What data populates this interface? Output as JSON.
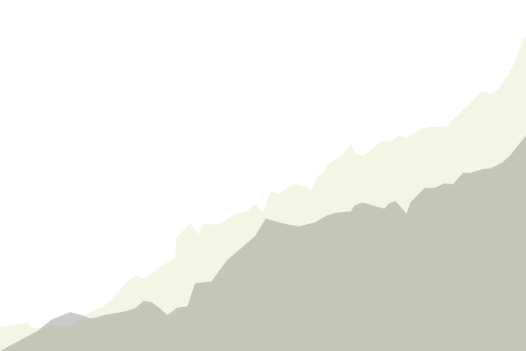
{
  "chart_data": {
    "type": "area",
    "title": "",
    "xlabel": "",
    "ylabel": "",
    "grid": false,
    "legend": "none",
    "axes_visible": false,
    "x_range": [
      0,
      100
    ],
    "y_range": [
      0,
      100
    ],
    "series": [
      {
        "color": "#f3f6e5",
        "points": [
          [
            0,
            6.8
          ],
          [
            5.3,
            8.0
          ],
          [
            6.1,
            6.6
          ],
          [
            9.1,
            6.6
          ],
          [
            12.1,
            6.6
          ],
          [
            15.2,
            9.3
          ],
          [
            18.2,
            12.0
          ],
          [
            19.7,
            12.7
          ],
          [
            21.2,
            14.8
          ],
          [
            24.2,
            19.8
          ],
          [
            25.8,
            21.6
          ],
          [
            27.3,
            20.7
          ],
          [
            28.8,
            22.0
          ],
          [
            30.3,
            23.9
          ],
          [
            33.3,
            26.4
          ],
          [
            33.6,
            32.5
          ],
          [
            36.2,
            36.4
          ],
          [
            37.7,
            33.2
          ],
          [
            38.6,
            36.1
          ],
          [
            41.7,
            36.1
          ],
          [
            43.2,
            37.5
          ],
          [
            44.7,
            39.1
          ],
          [
            47.0,
            39.8
          ],
          [
            48.5,
            42.0
          ],
          [
            50.0,
            39.5
          ],
          [
            51.5,
            45.5
          ],
          [
            53.0,
            44.8
          ],
          [
            54.5,
            46.4
          ],
          [
            56.1,
            47.7
          ],
          [
            57.6,
            46.8
          ],
          [
            58.3,
            47.3
          ],
          [
            59.1,
            45.5
          ],
          [
            60.6,
            50.2
          ],
          [
            61.4,
            50.5
          ],
          [
            62.1,
            52.7
          ],
          [
            63.6,
            54.5
          ],
          [
            65.2,
            55.9
          ],
          [
            66.7,
            58.9
          ],
          [
            67.4,
            56.6
          ],
          [
            69.0,
            55.5
          ],
          [
            72.7,
            60.0
          ],
          [
            74.2,
            59.5
          ],
          [
            75.8,
            61.4
          ],
          [
            77.3,
            60.7
          ],
          [
            80.3,
            63.4
          ],
          [
            81.8,
            63.9
          ],
          [
            84.8,
            63.9
          ],
          [
            86.4,
            66.4
          ],
          [
            89.4,
            70.7
          ],
          [
            91.7,
            74.1
          ],
          [
            93.2,
            73.2
          ],
          [
            94.7,
            74.5
          ],
          [
            97.0,
            79.5
          ],
          [
            100.0,
            90.2
          ]
        ]
      },
      {
        "color": "#cacac7",
        "points": [
          [
            0,
            0
          ],
          [
            7.1,
            5.7
          ],
          [
            9.8,
            8.9
          ],
          [
            13.3,
            11.1
          ],
          [
            16.1,
            10.0
          ],
          [
            19.1,
            7.7
          ],
          [
            21.7,
            7.5
          ],
          [
            23.5,
            8.3
          ],
          [
            25.8,
            9.5
          ],
          [
            30.3,
            11.4
          ],
          [
            31.8,
            10.2
          ],
          [
            33.6,
            12.3
          ],
          [
            35.6,
            12.7
          ],
          [
            37.1,
            19.3
          ],
          [
            40.2,
            19.8
          ],
          [
            43.2,
            25.9
          ],
          [
            48.5,
            32.7
          ],
          [
            50.5,
            37.7
          ],
          [
            54.5,
            36.1
          ],
          [
            56.8,
            35.5
          ],
          [
            59.8,
            36.6
          ],
          [
            62.1,
            38.6
          ],
          [
            63.6,
            39.3
          ],
          [
            66.7,
            39.8
          ],
          [
            67.4,
            41.4
          ],
          [
            68.9,
            42.3
          ],
          [
            73.1,
            40.5
          ],
          [
            73.9,
            42.0
          ],
          [
            75.2,
            42.7
          ],
          [
            76.5,
            40.5
          ],
          [
            77.3,
            39.1
          ],
          [
            78.0,
            42.3
          ],
          [
            80.7,
            46.4
          ],
          [
            82.6,
            46.4
          ],
          [
            84.4,
            47.7
          ],
          [
            86.1,
            47.5
          ],
          [
            88.0,
            50.7
          ],
          [
            89.4,
            50.7
          ],
          [
            91.7,
            51.8
          ],
          [
            93.2,
            52.0
          ],
          [
            95.5,
            53.7
          ],
          [
            97.0,
            55.7
          ],
          [
            100.0,
            61.4
          ]
        ]
      },
      {
        "color": "#c4c7b7",
        "points": [
          [
            0,
            0
          ],
          [
            7.6,
            5.9
          ],
          [
            9.8,
            7.5
          ],
          [
            12.1,
            6.8
          ],
          [
            13.6,
            7.3
          ],
          [
            15.2,
            8.9
          ],
          [
            18.2,
            9.5
          ],
          [
            19.7,
            10.2
          ],
          [
            24.2,
            11.4
          ],
          [
            25.8,
            12.3
          ],
          [
            27.3,
            14.3
          ],
          [
            28.8,
            13.9
          ],
          [
            30.3,
            12.3
          ],
          [
            31.8,
            10.2
          ],
          [
            33.3,
            10.5
          ],
          [
            33.6,
            12.3
          ],
          [
            35.6,
            12.7
          ],
          [
            37.1,
            19.3
          ],
          [
            40.2,
            19.8
          ],
          [
            43.2,
            25.9
          ],
          [
            48.5,
            32.7
          ],
          [
            50.5,
            37.7
          ],
          [
            54.5,
            36.1
          ],
          [
            56.8,
            35.5
          ],
          [
            59.8,
            36.6
          ],
          [
            62.1,
            38.6
          ],
          [
            63.6,
            39.3
          ],
          [
            66.7,
            39.8
          ],
          [
            67.4,
            41.4
          ],
          [
            68.9,
            42.3
          ],
          [
            73.1,
            40.5
          ],
          [
            73.9,
            42.0
          ],
          [
            75.2,
            42.7
          ],
          [
            76.5,
            40.5
          ],
          [
            77.3,
            39.1
          ],
          [
            78.0,
            42.3
          ],
          [
            80.7,
            46.4
          ],
          [
            82.6,
            46.4
          ],
          [
            84.4,
            47.7
          ],
          [
            86.1,
            47.5
          ],
          [
            88.0,
            50.7
          ],
          [
            89.4,
            50.7
          ],
          [
            91.7,
            51.8
          ],
          [
            93.2,
            52.0
          ],
          [
            95.5,
            53.7
          ],
          [
            97.0,
            55.7
          ],
          [
            100.0,
            61.4
          ]
        ]
      }
    ]
  }
}
